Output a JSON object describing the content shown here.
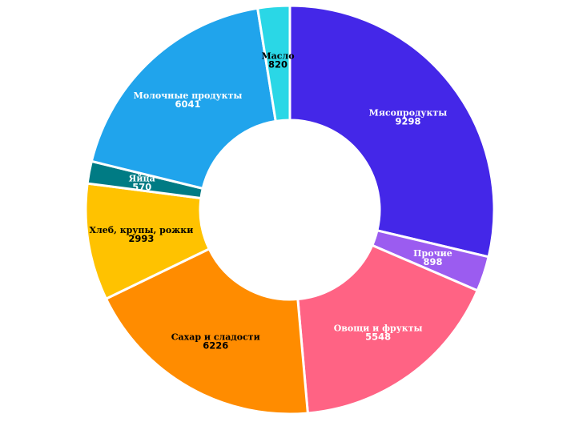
{
  "chart_data": {
    "type": "pie",
    "variant": "donut",
    "start_angle_deg": 0,
    "direction": "clockwise",
    "categories": [
      "Мясопродукты",
      "Прочие",
      "Овощи и фрукты",
      "Сахар и сладости",
      "Хлеб, крупы, рожки",
      "Яйца",
      "Молочные продукты",
      "Масло"
    ],
    "values": [
      9298,
      898,
      5548,
      6226,
      2993,
      570,
      6041,
      820
    ],
    "colors": [
      "#4427e8",
      "#9b5cf0",
      "#ff6384",
      "#ff8c00",
      "#ffc200",
      "#007b84",
      "#20a4ec",
      "#2ad7e6"
    ],
    "label_colors": [
      "#ffffff",
      "#ffffff",
      "#ffffff",
      "#000000",
      "#000000",
      "#ffffff",
      "#ffffff",
      "#000000"
    ],
    "title": "",
    "legend": "none"
  }
}
